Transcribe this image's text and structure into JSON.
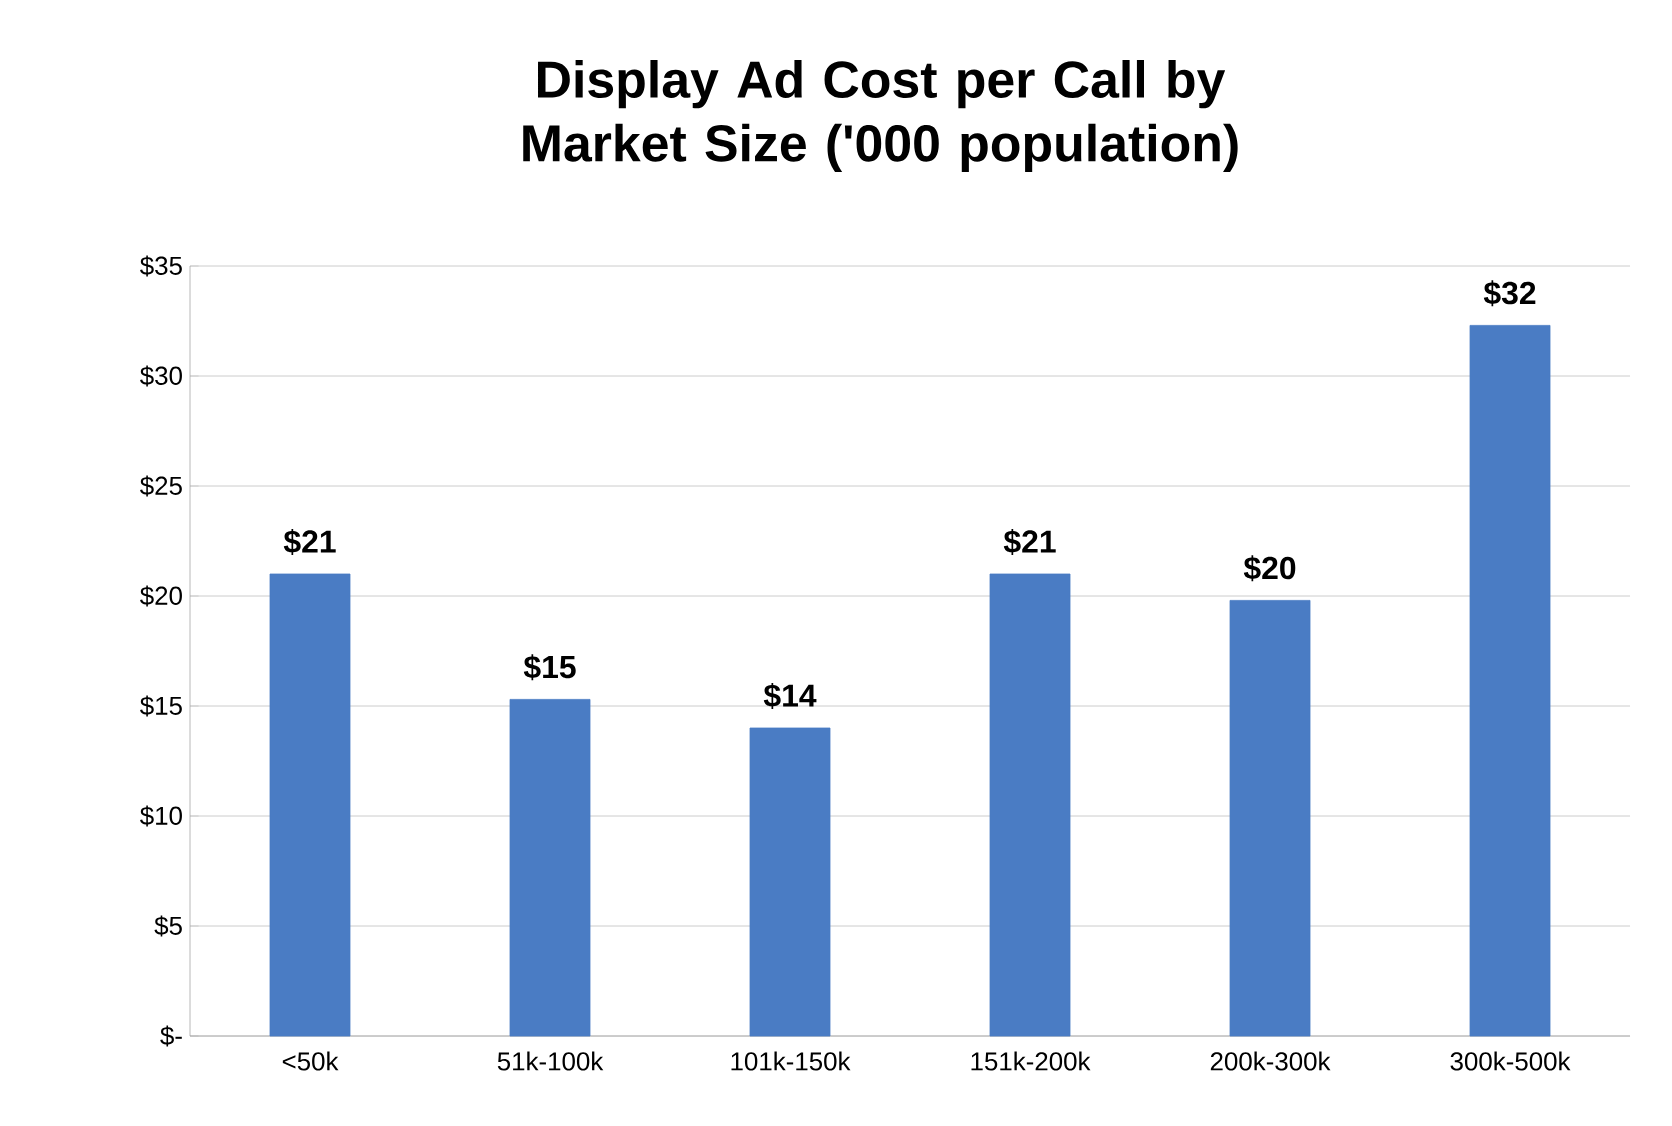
{
  "chart_data": {
    "type": "bar",
    "title": "Display Ad Cost per Call by Market Size ('000 population)",
    "categories": [
      "<50k",
      "51k-100k",
      "101k-150k",
      "151k-200k",
      "200k-300k",
      "300k-500k"
    ],
    "values": [
      21,
      15.3,
      14,
      21,
      19.8,
      32.3
    ],
    "value_labels": [
      "$21",
      "$15",
      "$14",
      "$21",
      "$20",
      "$32"
    ],
    "color": "#4a7cc4",
    "ylim": [
      0,
      35
    ],
    "yticks": [
      {
        "value": 0,
        "label": "$-"
      },
      {
        "value": 5,
        "label": "$5"
      },
      {
        "value": 10,
        "label": "$10"
      },
      {
        "value": 15,
        "label": "$15"
      },
      {
        "value": 20,
        "label": "$20"
      },
      {
        "value": 25,
        "label": "$25"
      },
      {
        "value": 30,
        "label": "$30"
      },
      {
        "value": 35,
        "label": "$35"
      }
    ],
    "grid": "y"
  }
}
